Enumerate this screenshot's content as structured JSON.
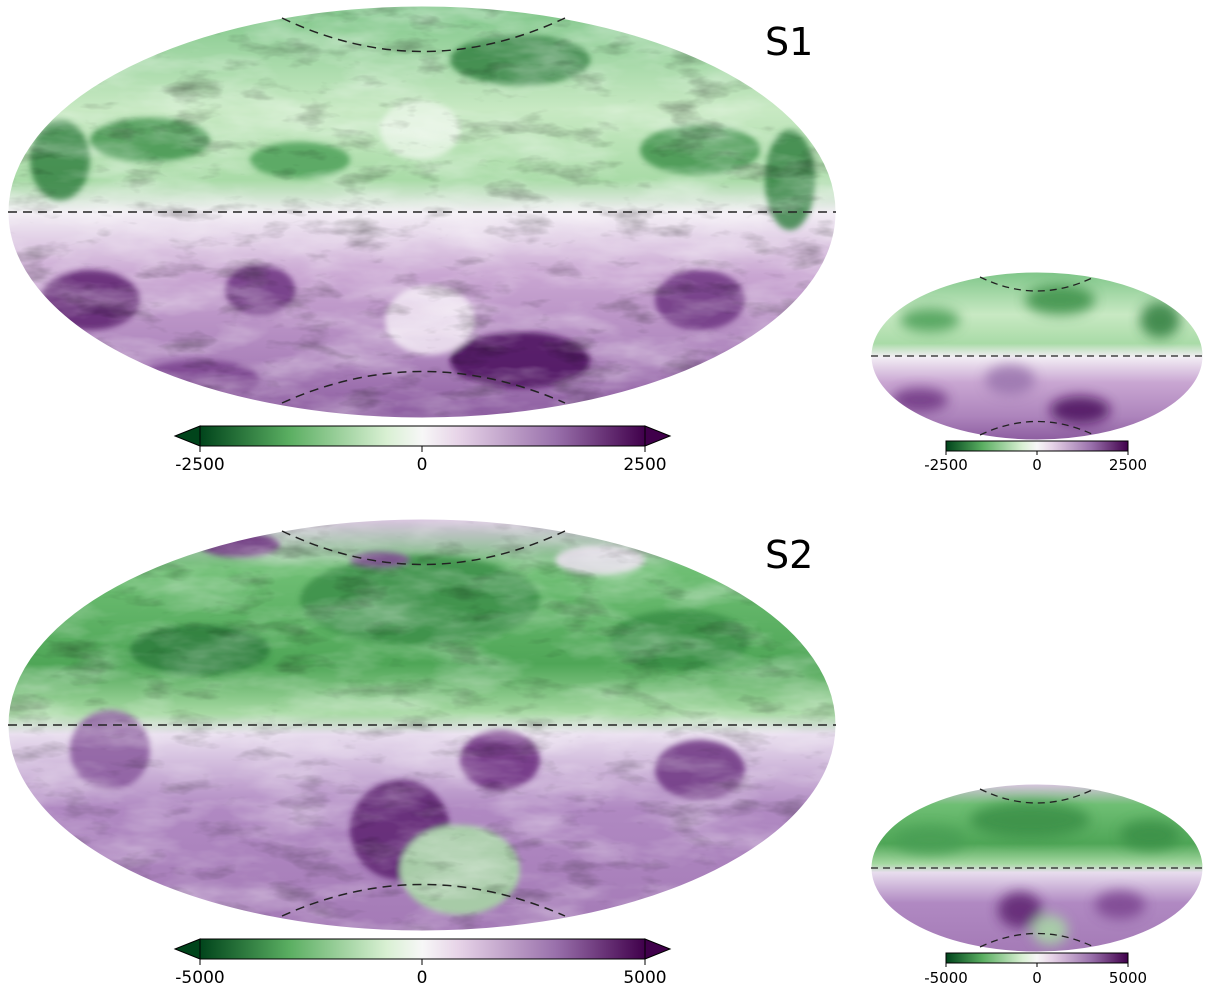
{
  "panels": [
    {
      "label": "S1",
      "colorbar_large": {
        "ticks": [
          "-2500",
          "0",
          "2500"
        ]
      },
      "colorbar_small": {
        "ticks": [
          "-2500",
          "0",
          "2500"
        ]
      },
      "colors": {
        "neg_dark": "#1b5e20",
        "neg_mid": "#7fc97f",
        "pos_mid": "#c2a5cf",
        "pos_dark": "#40004b",
        "center": "#f7f7f7"
      }
    },
    {
      "label": "S2",
      "colorbar_large": {
        "ticks": [
          "-5000",
          "0",
          "5000"
        ]
      },
      "colorbar_small": {
        "ticks": [
          "-5000",
          "0",
          "5000"
        ]
      },
      "colors": {
        "neg_dark": "#1b5e20",
        "neg_mid": "#7fc97f",
        "pos_mid": "#c2a5cf",
        "pos_dark": "#40004b",
        "center": "#f7f7f7"
      }
    }
  ],
  "colormap": {
    "stops": [
      "#00441b",
      "#5aae61",
      "#d9f0d3",
      "#f7f7f7",
      "#e7d4e8",
      "#9970ab",
      "#40004b"
    ]
  }
}
